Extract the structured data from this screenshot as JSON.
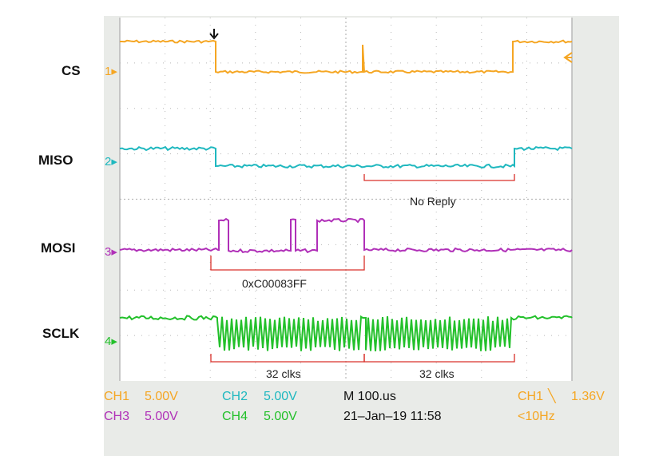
{
  "colors": {
    "ch1": "#f5a623",
    "ch2": "#1fb8bf",
    "ch3": "#b030b8",
    "ch4": "#22c02a",
    "grid": "#b8b8b8",
    "bracket": "#d9302a",
    "bezel": "#e9ebe8"
  },
  "signals": [
    {
      "label": "CS",
      "channel": "1"
    },
    {
      "label": "MISO",
      "channel": "2"
    },
    {
      "label": "MOSI",
      "channel": "3"
    },
    {
      "label": "SCLK",
      "channel": "4"
    }
  ],
  "annotations": {
    "no_reply": "No Reply",
    "mosi_word": "0xC00083FF",
    "clks_first": "32 clks",
    "clks_second": "32 clks"
  },
  "status": {
    "ch1": "CH1",
    "ch1_scale": "5.00V",
    "ch2": "CH2",
    "ch2_scale": "5.00V",
    "ch3": "CH3",
    "ch3_scale": "5.00V",
    "ch4": "CH4",
    "ch4_scale": "5.00V",
    "timebase": "M 100.us",
    "datetime": "21–Jan–19 11:58",
    "trigger_source": "CH1",
    "trigger_slope": "╲",
    "trigger_level": "1.36V",
    "trigger_freq": "<10Hz"
  }
}
